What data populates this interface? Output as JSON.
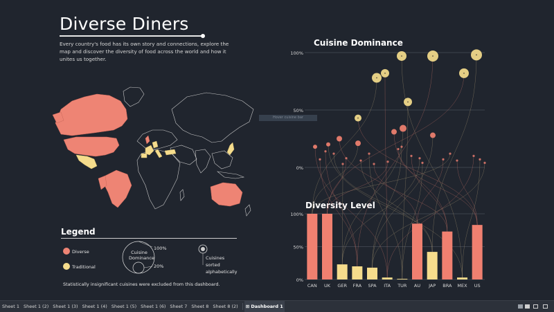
{
  "header": {
    "title": "Diverse Diners",
    "description": "Every country's food has its own story and connections, explore the map and discover the diversity of food across the world and how it unites us together."
  },
  "legend": {
    "title": "Legend",
    "diverse_label": "Diverse",
    "traditional_label": "Traditional",
    "size_label": "Cuisine Dominance",
    "size_max": "100%",
    "size_min": "20%",
    "sort_label": "Cuisines sorted alphabetically",
    "note": "Statistically insignificant cuisines were excluded from this dashboard."
  },
  "tooltip_hint": "Hover cuisine bar",
  "colors": {
    "diverse": "#f08070",
    "traditional": "#f5dc8c",
    "background": "#20252e"
  },
  "chart_data": [
    {
      "type": "scatter",
      "title": "Cuisine Dominance",
      "y_ticks": [
        "100%",
        "50%",
        "0%"
      ],
      "ylim": [
        0,
        100
      ],
      "highlight_points": [
        {
          "x": 544,
          "y": 78,
          "r": 7,
          "category": "traditional"
        },
        {
          "x": 556,
          "y": 82,
          "r": 6,
          "category": "traditional"
        },
        {
          "x": 580,
          "y": 97,
          "r": 7,
          "category": "traditional"
        },
        {
          "x": 625,
          "y": 97,
          "r": 8,
          "category": "traditional"
        },
        {
          "x": 688,
          "y": 98,
          "r": 8,
          "category": "traditional"
        },
        {
          "x": 670,
          "y": 82,
          "r": 7,
          "category": "traditional"
        },
        {
          "x": 589,
          "y": 57,
          "r": 6,
          "category": "traditional"
        },
        {
          "x": 517,
          "y": 43,
          "r": 5,
          "category": "traditional"
        },
        {
          "x": 625,
          "y": 28,
          "r": 4,
          "category": "diverse"
        },
        {
          "x": 569,
          "y": 31,
          "r": 4,
          "category": "diverse"
        },
        {
          "x": 582,
          "y": 34,
          "r": 5,
          "category": "diverse"
        },
        {
          "x": 490,
          "y": 25,
          "r": 4,
          "category": "diverse"
        },
        {
          "x": 517,
          "y": 21,
          "r": 4,
          "category": "diverse"
        },
        {
          "x": 455,
          "y": 18,
          "r": 3,
          "category": "diverse"
        },
        {
          "x": 474,
          "y": 20,
          "r": 3,
          "category": "diverse"
        }
      ],
      "small_dots": [
        {
          "x": 470,
          "y": 14
        },
        {
          "x": 482,
          "y": 12
        },
        {
          "x": 500,
          "y": 8
        },
        {
          "x": 533,
          "y": 12
        },
        {
          "x": 575,
          "y": 16
        },
        {
          "x": 580,
          "y": 18
        },
        {
          "x": 594,
          "y": 10
        },
        {
          "x": 606,
          "y": 8
        },
        {
          "x": 640,
          "y": 7
        },
        {
          "x": 650,
          "y": 12
        },
        {
          "x": 684,
          "y": 10
        },
        {
          "x": 693,
          "y": 7
        },
        {
          "x": 462,
          "y": 7
        },
        {
          "x": 521,
          "y": 6
        },
        {
          "x": 560,
          "y": 5
        },
        {
          "x": 610,
          "y": 4
        },
        {
          "x": 660,
          "y": 6
        },
        {
          "x": 700,
          "y": 4
        },
        {
          "x": 540,
          "y": 3
        },
        {
          "x": 495,
          "y": 3
        }
      ]
    },
    {
      "type": "bar",
      "title": "Diversity Level",
      "categories": [
        "CAN",
        "UK",
        "GER",
        "FRA",
        "SPA",
        "ITA",
        "TUR",
        "AU",
        "JAP",
        "BRA",
        "MEX",
        "US"
      ],
      "values": [
        100,
        100,
        23,
        20,
        18,
        3,
        1,
        85,
        42,
        73,
        3,
        83
      ],
      "kinds": [
        "diverse",
        "diverse",
        "traditional",
        "traditional",
        "traditional",
        "traditional",
        "traditional",
        "diverse",
        "traditional",
        "diverse",
        "traditional",
        "diverse"
      ],
      "y_ticks": [
        "100%",
        "50%",
        "0%"
      ],
      "ylim": [
        0,
        100
      ]
    }
  ],
  "tabs": [
    "Sheet 1",
    "Sheet 1 (2)",
    "Sheet 1 (3)",
    "Sheet 1 (4)",
    "Sheet 1 (5)",
    "Sheet 1 (6)",
    "Sheet 7",
    "Sheet 8",
    "Sheet 8 (2)",
    "Dashboard 1"
  ],
  "active_tab": "Dashboard 1"
}
